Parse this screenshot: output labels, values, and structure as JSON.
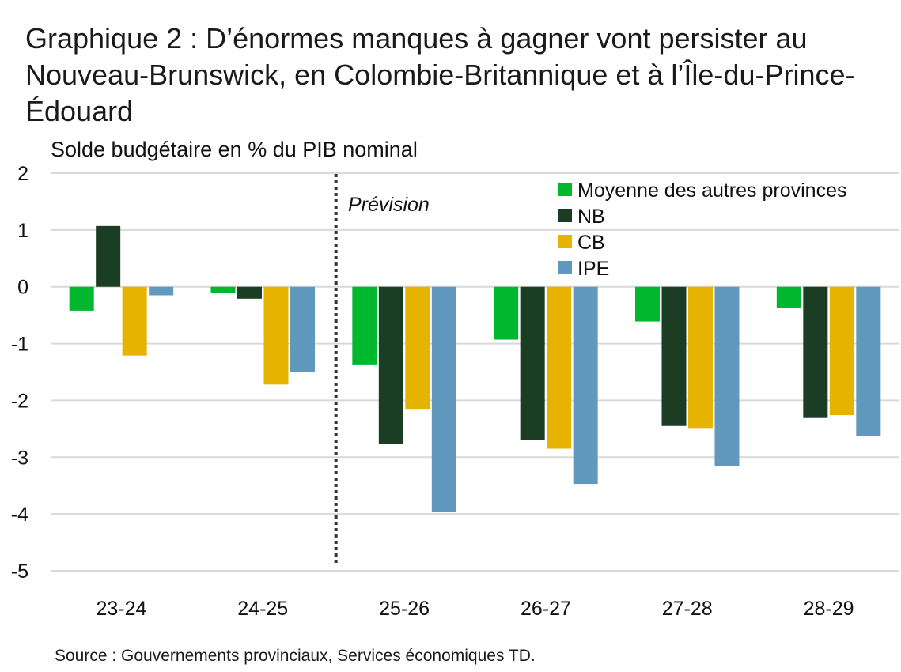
{
  "title": "Graphique 2 : D’énormes manques à gagner vont persister au Nouveau-Brunswick, en Colombie-Britannique et à l’Île-du-Prince-Édouard",
  "source": "Source : Gouvernements provinciaux, Services économiques TD.",
  "chart_data": {
    "type": "bar",
    "title": "Graphique 2 : D’énormes manques à gagner vont persister au Nouveau-Brunswick, en Colombie-Britannique et à l’Île-du-Prince-Édouard",
    "ylabel": "Solde budgétaire en % du PIB nominal",
    "xlabel": "",
    "categories": [
      "23-24",
      "24-25",
      "25-26",
      "26-27",
      "27-28",
      "28-29"
    ],
    "ylim": [
      -5,
      2
    ],
    "yticks": [
      2,
      1,
      0,
      -1,
      -2,
      -3,
      -4,
      -5
    ],
    "grid": "horizontal",
    "legend_position": "top-right",
    "forecast_annotation": "Prévision",
    "forecast_starts_before": "25-26",
    "series": [
      {
        "name": "Moyenne des autres provinces",
        "color": "#00b82e",
        "values": [
          -0.42,
          -0.11,
          -1.38,
          -0.93,
          -0.61,
          -0.37
        ]
      },
      {
        "name": "NB",
        "color": "#1a3d24",
        "values": [
          1.07,
          -0.21,
          -2.76,
          -2.7,
          -2.45,
          -2.31
        ]
      },
      {
        "name": "CB",
        "color": "#e6b300",
        "values": [
          -1.21,
          -1.72,
          -2.15,
          -2.85,
          -2.5,
          -2.26
        ]
      },
      {
        "name": "IPE",
        "color": "#6198be",
        "values": [
          -0.15,
          -1.5,
          -3.96,
          -3.47,
          -3.15,
          -2.63
        ]
      }
    ]
  }
}
